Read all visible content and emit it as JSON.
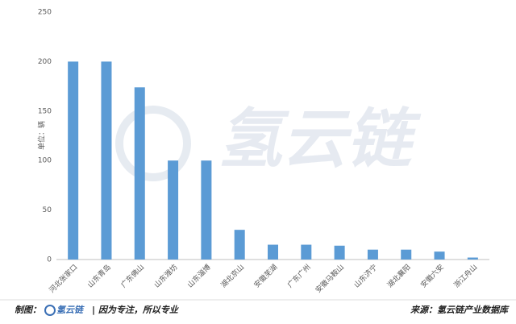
{
  "chart_data": {
    "type": "bar",
    "y_label": "单位：辆",
    "categories": [
      "河北张家口",
      "山东青岛",
      "广东佛山",
      "山东潍坊",
      "山东淄博",
      "湖北京山",
      "安徽芜湖",
      "广东广州",
      "安徽马鞍山",
      "山东济宁",
      "湖北襄阳",
      "安徽六安",
      "浙江舟山"
    ],
    "values": [
      200,
      200,
      174,
      100,
      100,
      30,
      15,
      15,
      14,
      10,
      10,
      8,
      2
    ],
    "color": "#5b9bd5",
    "ylim": [
      0,
      250
    ],
    "yticks": [
      0,
      50,
      100,
      150,
      200,
      250
    ],
    "grid": false
  },
  "watermark": "氢云链",
  "footer": {
    "left_label": "制图：",
    "brand": "氢云链",
    "slogan": "| 因为专注，所以专业",
    "source": "来源：氢云链产业数据库"
  }
}
